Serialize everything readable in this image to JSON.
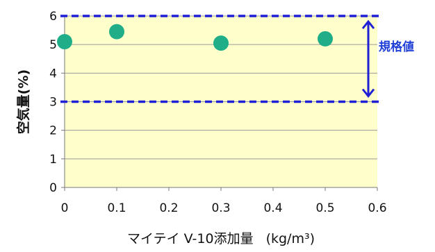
{
  "chart_data": {
    "type": "scatter",
    "title": "",
    "xlabel": "マイテイ V-10添加量 (kg/m³)",
    "xlabel_main": "マイテイ V-10添加量",
    "xlabel_unit": "(kg/m³)",
    "ylabel": "空気量(%)",
    "xlim": [
      0,
      0.6
    ],
    "ylim": [
      0,
      6
    ],
    "x_ticks": [
      "0",
      "0.1",
      "0.2",
      "0.3",
      "0.4",
      "0.5",
      "0.6"
    ],
    "y_ticks": [
      "0",
      "1",
      "2",
      "3",
      "4",
      "5",
      "6"
    ],
    "grid": "horizontal",
    "points": [
      {
        "x": 0.0,
        "y": 5.1
      },
      {
        "x": 0.1,
        "y": 5.45
      },
      {
        "x": 0.3,
        "y": 5.05
      },
      {
        "x": 0.5,
        "y": 5.2
      }
    ],
    "spec_limits": {
      "label": "規格値",
      "lower": 3.0,
      "upper": 6.0
    },
    "colors": {
      "plot_background": "#FFFFCC",
      "marker": "#1FAE88",
      "spec_line": "#1F1FD6",
      "spec_label": "#1F3FD6",
      "gridline": "#9A9A9A"
    }
  }
}
